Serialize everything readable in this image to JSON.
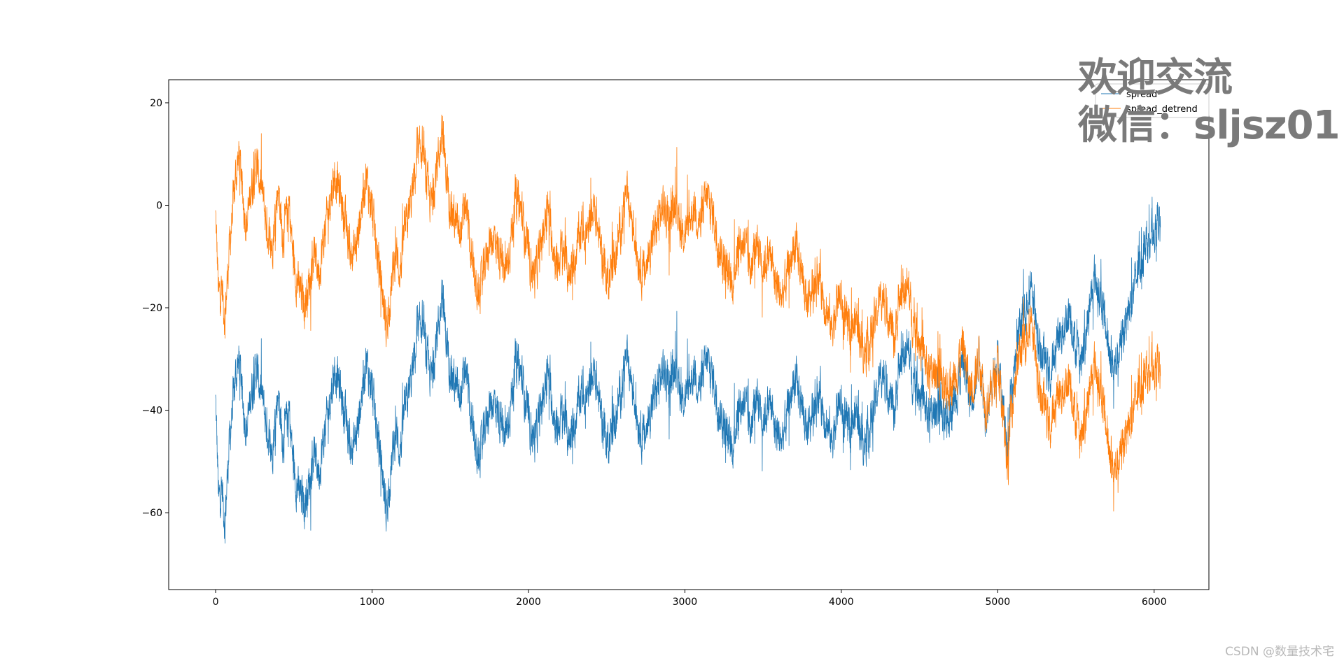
{
  "chart_data": {
    "type": "line",
    "title": "",
    "xlabel": "",
    "ylabel": "",
    "xlim": [
      -300,
      6350
    ],
    "ylim": [
      -75,
      24.5
    ],
    "xticks": [
      0,
      1000,
      2000,
      3000,
      4000,
      5000,
      6000
    ],
    "yticks": [
      20,
      0,
      -20,
      -40,
      -60
    ],
    "legend_position": "top-right",
    "grid": false,
    "n_points": 6040,
    "series": [
      {
        "name": "spread",
        "color": "#1f77b4",
        "x": [
          0,
          20,
          40,
          60,
          80,
          100,
          130,
          150,
          180,
          200,
          230,
          260,
          300,
          330,
          360,
          400,
          430,
          470,
          500,
          530,
          570,
          600,
          630,
          660,
          700,
          730,
          760,
          800,
          830,
          870,
          900,
          930,
          960,
          1000,
          1030,
          1060,
          1090,
          1120,
          1150,
          1180,
          1200,
          1240,
          1280,
          1320,
          1350,
          1380,
          1420,
          1450,
          1480,
          1520,
          1560,
          1600,
          1640,
          1680,
          1710,
          1740,
          1780,
          1820,
          1850,
          1880,
          1920,
          1960,
          2000,
          2040,
          2080,
          2120,
          2150,
          2180,
          2220,
          2260,
          2300,
          2340,
          2380,
          2420,
          2460,
          2500,
          2540,
          2580,
          2620,
          2660,
          2700,
          2740,
          2780,
          2820,
          2860,
          2900,
          2940,
          2980,
          3020,
          3060,
          3100,
          3140,
          3180,
          3220,
          3260,
          3300,
          3340,
          3380,
          3420,
          3460,
          3500,
          3540,
          3580,
          3620,
          3660,
          3700,
          3740,
          3780,
          3820,
          3860,
          3900,
          3940,
          3980,
          4020,
          4060,
          4100,
          4140,
          4180,
          4220,
          4260,
          4300,
          4340,
          4380,
          4420,
          4460,
          4500,
          4540,
          4580,
          4620,
          4660,
          4700,
          4740,
          4780,
          4820,
          4860,
          4880,
          4920,
          4960,
          5000,
          5040,
          5070,
          5080,
          5100,
          5140,
          5180,
          5220,
          5240,
          5260,
          5300,
          5340,
          5380,
          5420,
          5460,
          5500,
          5540,
          5580,
          5620,
          5660,
          5700,
          5740,
          5780,
          5820,
          5860,
          5900,
          5940,
          5980,
          6010,
          6030,
          6040
        ],
        "y": [
          -38,
          -58,
          -55,
          -62,
          -50,
          -42,
          -33,
          -30,
          -40,
          -44,
          -36,
          -32,
          -38,
          -44,
          -48,
          -36,
          -46,
          -40,
          -52,
          -56,
          -58,
          -54,
          -48,
          -52,
          -44,
          -38,
          -32,
          -36,
          -42,
          -48,
          -45,
          -38,
          -30,
          -36,
          -44,
          -50,
          -60,
          -52,
          -44,
          -48,
          -42,
          -36,
          -28,
          -22,
          -30,
          -34,
          -24,
          -18,
          -28,
          -34,
          -38,
          -32,
          -44,
          -50,
          -46,
          -40,
          -38,
          -42,
          -46,
          -40,
          -30,
          -34,
          -42,
          -46,
          -40,
          -32,
          -38,
          -44,
          -40,
          -46,
          -42,
          -36,
          -38,
          -32,
          -40,
          -46,
          -44,
          -38,
          -30,
          -34,
          -42,
          -46,
          -40,
          -36,
          -32,
          -36,
          -30,
          -38,
          -36,
          -32,
          -36,
          -30,
          -34,
          -40,
          -44,
          -48,
          -40,
          -38,
          -44,
          -36,
          -42,
          -38,
          -44,
          -46,
          -40,
          -34,
          -38,
          -44,
          -40,
          -36,
          -42,
          -46,
          -38,
          -42,
          -44,
          -40,
          -46,
          -44,
          -38,
          -32,
          -36,
          -40,
          -30,
          -28,
          -34,
          -36,
          -40,
          -42,
          -38,
          -44,
          -40,
          -36,
          -30,
          -38,
          -34,
          -28,
          -40,
          -36,
          -30,
          -42,
          -48,
          -38,
          -32,
          -24,
          -20,
          -14,
          -22,
          -28,
          -30,
          -34,
          -26,
          -24,
          -20,
          -28,
          -30,
          -22,
          -14,
          -18,
          -26,
          -32,
          -28,
          -22,
          -18,
          -12,
          -8,
          -6,
          -4,
          -2,
          -6
        ]
      },
      {
        "name": "spread_detrend",
        "color": "#ff7f0e",
        "x": [
          0,
          20,
          40,
          60,
          80,
          100,
          130,
          150,
          180,
          200,
          230,
          260,
          300,
          330,
          360,
          400,
          430,
          470,
          500,
          530,
          570,
          600,
          630,
          660,
          700,
          730,
          760,
          800,
          830,
          870,
          900,
          930,
          960,
          1000,
          1030,
          1060,
          1090,
          1120,
          1150,
          1180,
          1200,
          1240,
          1280,
          1320,
          1350,
          1380,
          1420,
          1450,
          1480,
          1520,
          1560,
          1600,
          1640,
          1680,
          1710,
          1740,
          1780,
          1820,
          1850,
          1880,
          1920,
          1960,
          2000,
          2040,
          2080,
          2120,
          2150,
          2180,
          2220,
          2260,
          2300,
          2340,
          2380,
          2420,
          2460,
          2500,
          2540,
          2580,
          2620,
          2660,
          2700,
          2740,
          2780,
          2820,
          2860,
          2900,
          2940,
          2980,
          3020,
          3060,
          3100,
          3140,
          3180,
          3220,
          3260,
          3300,
          3340,
          3380,
          3420,
          3460,
          3500,
          3540,
          3580,
          3620,
          3660,
          3700,
          3740,
          3780,
          3820,
          3860,
          3900,
          3940,
          3980,
          4020,
          4060,
          4100,
          4140,
          4180,
          4220,
          4260,
          4300,
          4340,
          4380,
          4420,
          4460,
          4500,
          4540,
          4580,
          4620,
          4660,
          4700,
          4740,
          4780,
          4820,
          4860,
          4880,
          4920,
          4960,
          5000,
          5040,
          5070,
          5080,
          5100,
          5140,
          5180,
          5220,
          5240,
          5260,
          5300,
          5340,
          5380,
          5420,
          5460,
          5500,
          5540,
          5580,
          5620,
          5660,
          5700,
          5740,
          5780,
          5820,
          5860,
          5900,
          5940,
          5980,
          6010,
          6030,
          6040
        ],
        "y": [
          -2,
          -18,
          -16,
          -22,
          -12,
          -4,
          6,
          10,
          0,
          -4,
          4,
          8,
          2,
          -5,
          -8,
          4,
          -6,
          0,
          -12,
          -16,
          -19,
          -15,
          -9,
          -13,
          -5,
          1,
          6,
          2,
          -4,
          -10,
          -8,
          -1,
          6,
          -1,
          -9,
          -15,
          -24,
          -17,
          -9,
          -13,
          -7,
          -1,
          7,
          12,
          4,
          0,
          9,
          14,
          4,
          -2,
          -6,
          0,
          -12,
          -18,
          -14,
          -8,
          -6,
          -10,
          -14,
          -8,
          2,
          -2,
          -10,
          -14,
          -8,
          0,
          -6,
          -12,
          -8,
          -14,
          -10,
          -4,
          -6,
          0,
          -8,
          -14,
          -12,
          -6,
          2,
          -2,
          -10,
          -14,
          -8,
          -4,
          0,
          -4,
          2,
          -6,
          -4,
          0,
          -4,
          2,
          -2,
          -8,
          -12,
          -16,
          -8,
          -7,
          -13,
          -6,
          -12,
          -9,
          -15,
          -18,
          -13,
          -8,
          -12,
          -19,
          -16,
          -13,
          -20,
          -24,
          -17,
          -22,
          -25,
          -22,
          -28,
          -27,
          -22,
          -17,
          -21,
          -26,
          -17,
          -16,
          -23,
          -26,
          -31,
          -34,
          -31,
          -38,
          -35,
          -32,
          -27,
          -36,
          -33,
          -28,
          -39,
          -36,
          -31,
          -44,
          -51,
          -41,
          -36,
          -29,
          -26,
          -21,
          -29,
          -36,
          -39,
          -44,
          -37,
          -36,
          -33,
          -42,
          -45,
          -38,
          -31,
          -36,
          -45,
          -52,
          -49,
          -44,
          -41,
          -36,
          -33,
          -32,
          -31,
          -30,
          -35
        ]
      }
    ]
  },
  "overlay": {
    "line1": "欢迎交流",
    "line2": "微信：sljsz01"
  },
  "credit": "CSDN @数量技术宅"
}
